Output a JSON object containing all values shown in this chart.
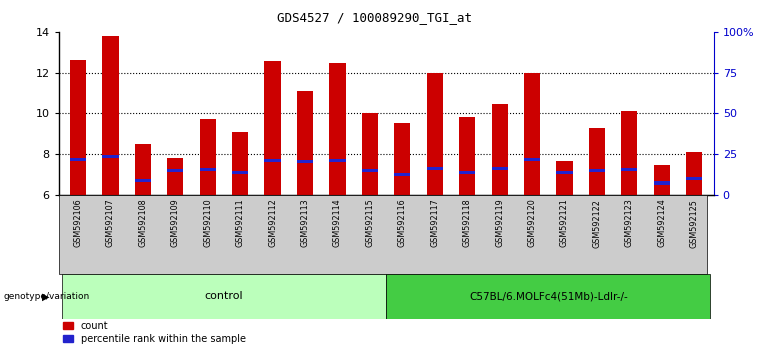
{
  "title": "GDS4527 / 100089290_TGI_at",
  "samples": [
    "GSM592106",
    "GSM592107",
    "GSM592108",
    "GSM592109",
    "GSM592110",
    "GSM592111",
    "GSM592112",
    "GSM592113",
    "GSM592114",
    "GSM592115",
    "GSM592116",
    "GSM592117",
    "GSM592118",
    "GSM592119",
    "GSM592120",
    "GSM592121",
    "GSM592122",
    "GSM592123",
    "GSM592124",
    "GSM592125"
  ],
  "count_values": [
    12.6,
    13.8,
    8.5,
    7.8,
    9.7,
    9.1,
    12.55,
    11.1,
    12.45,
    10.0,
    9.5,
    12.0,
    9.8,
    10.45,
    12.0,
    7.65,
    9.3,
    10.1,
    7.45,
    8.1
  ],
  "percentile_values": [
    7.65,
    7.8,
    6.6,
    7.1,
    7.15,
    7.0,
    7.6,
    7.55,
    7.6,
    7.1,
    6.9,
    7.2,
    7.0,
    7.2,
    7.65,
    7.0,
    7.1,
    7.15,
    6.5,
    6.7
  ],
  "ymin": 6,
  "ymax": 14,
  "yticks": [
    6,
    8,
    10,
    12,
    14
  ],
  "right_ytick_labels": [
    "0",
    "25",
    "50",
    "75",
    "100%"
  ],
  "bar_color": "#cc0000",
  "percentile_color": "#2222cc",
  "bar_width": 0.5,
  "control_samples": 10,
  "group1_label": "control",
  "group2_label": "C57BL/6.MOLFc4(51Mb)-Ldlr-/-",
  "group1_color": "#bbffbb",
  "group2_color": "#44cc44",
  "genotype_label": "genotype/variation",
  "legend_count": "count",
  "legend_percentile": "percentile rank within the sample",
  "title_color": "#000000",
  "right_axis_color": "#0000cc",
  "tick_label_bg": "#cccccc"
}
